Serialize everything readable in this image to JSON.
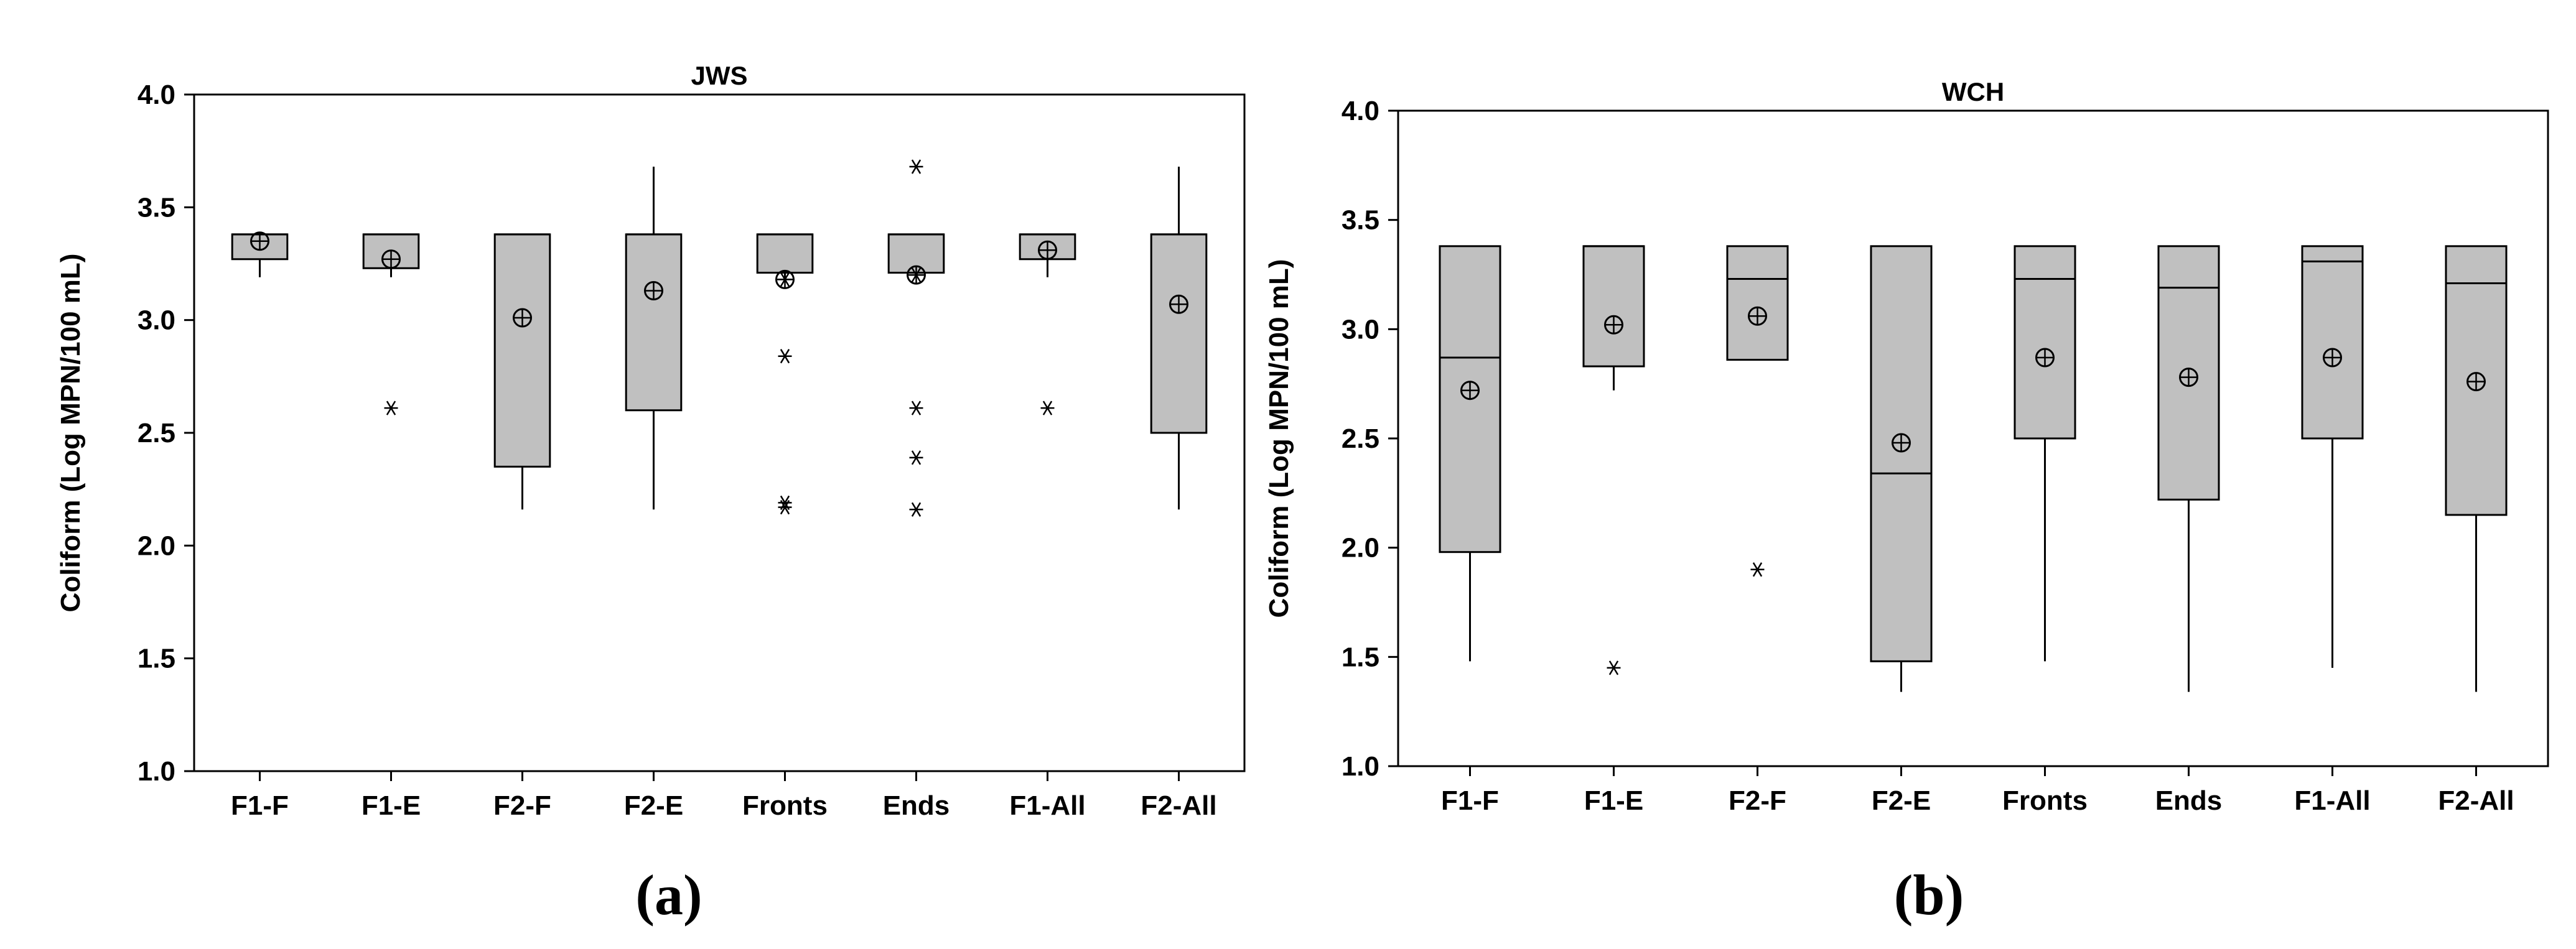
{
  "chart_data": [
    {
      "type": "box",
      "title": "JWS",
      "ylabel": "Coliform (Log MPN/100 mL)",
      "ylim": [
        1.0,
        4.0
      ],
      "yticks": [
        "1.0",
        "1.5",
        "2.0",
        "2.5",
        "3.0",
        "3.5",
        "4.0"
      ],
      "categories": [
        "F1-F",
        "F1-E",
        "F2-F",
        "F2-E",
        "Fronts",
        "Ends",
        "F1-All",
        "F2-All"
      ],
      "panel_label": "(a)",
      "box_color": "#c0c0c0",
      "boxes": [
        {
          "category": "F1-F",
          "whisker_low": 3.19,
          "q1": 3.27,
          "median": 3.38,
          "q3": 3.38,
          "whisker_high": 3.38,
          "mean": 3.35,
          "outliers": []
        },
        {
          "category": "F1-E",
          "whisker_low": 3.19,
          "q1": 3.23,
          "median": 3.38,
          "q3": 3.38,
          "whisker_high": 3.38,
          "mean": 3.27,
          "outliers": [
            2.61
          ]
        },
        {
          "category": "F2-F",
          "whisker_low": 2.16,
          "q1": 2.35,
          "median": 3.38,
          "q3": 3.38,
          "whisker_high": 3.38,
          "mean": 3.01,
          "outliers": []
        },
        {
          "category": "F2-E",
          "whisker_low": 2.16,
          "q1": 2.6,
          "median": 3.38,
          "q3": 3.38,
          "whisker_high": 3.68,
          "mean": 3.13,
          "outliers": []
        },
        {
          "category": "Fronts",
          "whisker_low": 3.19,
          "q1": 3.21,
          "median": 3.38,
          "q3": 3.38,
          "whisker_high": 3.38,
          "mean": 3.18,
          "outliers": [
            3.18,
            2.84,
            2.19,
            2.17
          ]
        },
        {
          "category": "Ends",
          "whisker_low": 3.21,
          "q1": 3.21,
          "median": 3.38,
          "q3": 3.38,
          "whisker_high": 3.38,
          "mean": 3.2,
          "outliers": [
            3.68,
            3.2,
            2.61,
            2.39,
            2.16
          ]
        },
        {
          "category": "F1-All",
          "whisker_low": 3.19,
          "q1": 3.27,
          "median": 3.38,
          "q3": 3.38,
          "whisker_high": 3.38,
          "mean": 3.31,
          "outliers": [
            2.61
          ]
        },
        {
          "category": "F2-All",
          "whisker_low": 2.16,
          "q1": 2.5,
          "median": 3.38,
          "q3": 3.38,
          "whisker_high": 3.68,
          "mean": 3.07,
          "outliers": []
        }
      ]
    },
    {
      "type": "box",
      "title": "WCH",
      "ylabel": "Coliform (Log MPN/100 mL)",
      "ylim": [
        1.0,
        4.0
      ],
      "yticks": [
        "1.0",
        "1.5",
        "2.0",
        "2.5",
        "3.0",
        "3.5",
        "4.0"
      ],
      "categories": [
        "F1-F",
        "F1-E",
        "F2-F",
        "F2-E",
        "Fronts",
        "Ends",
        "F1-All",
        "F2-All"
      ],
      "panel_label": "(b)",
      "box_color": "#c0c0c0",
      "boxes": [
        {
          "category": "F1-F",
          "whisker_low": 1.48,
          "q1": 1.98,
          "median": 2.87,
          "q3": 3.38,
          "whisker_high": 3.38,
          "mean": 2.72,
          "outliers": []
        },
        {
          "category": "F1-E",
          "whisker_low": 2.72,
          "q1": 2.83,
          "median": 3.38,
          "q3": 3.38,
          "whisker_high": 3.38,
          "mean": 3.02,
          "outliers": [
            1.45
          ]
        },
        {
          "category": "F2-F",
          "whisker_low": 2.86,
          "q1": 2.86,
          "median": 3.23,
          "q3": 3.38,
          "whisker_high": 3.38,
          "mean": 3.06,
          "outliers": [
            1.9
          ]
        },
        {
          "category": "F2-E",
          "whisker_low": 1.34,
          "q1": 1.48,
          "median": 2.34,
          "q3": 3.38,
          "whisker_high": 3.38,
          "mean": 2.48,
          "outliers": []
        },
        {
          "category": "Fronts",
          "whisker_low": 1.48,
          "q1": 2.5,
          "median": 3.23,
          "q3": 3.38,
          "whisker_high": 3.38,
          "mean": 2.87,
          "outliers": []
        },
        {
          "category": "Ends",
          "whisker_low": 1.34,
          "q1": 2.22,
          "median": 3.19,
          "q3": 3.38,
          "whisker_high": 3.38,
          "mean": 2.78,
          "outliers": []
        },
        {
          "category": "F1-All",
          "whisker_low": 1.45,
          "q1": 2.5,
          "median": 3.31,
          "q3": 3.38,
          "whisker_high": 3.38,
          "mean": 2.87,
          "outliers": []
        },
        {
          "category": "F2-All",
          "whisker_low": 1.34,
          "q1": 2.15,
          "median": 3.21,
          "q3": 3.38,
          "whisker_high": 3.38,
          "mean": 2.76,
          "outliers": []
        }
      ]
    }
  ]
}
